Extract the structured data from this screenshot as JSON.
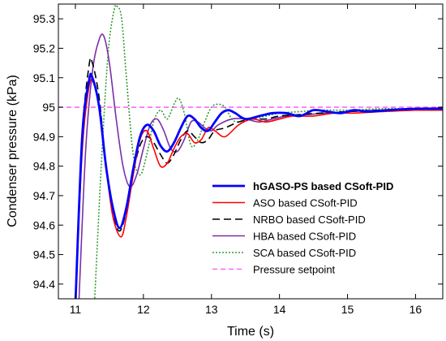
{
  "chart_data": {
    "type": "line",
    "xlabel": "Time (s)",
    "ylabel": "Condenser pressure (kPa)",
    "xlim": [
      10.75,
      16.4
    ],
    "ylim": [
      94.35,
      95.35
    ],
    "xticks": [
      "11",
      "12",
      "13",
      "14",
      "15",
      "16"
    ],
    "yticks": [
      "94.4",
      "94.5",
      "94.6",
      "94.7",
      "94.8",
      "94.9",
      "95",
      "95.1",
      "95.2",
      "95.3"
    ],
    "grid": false,
    "legend_position": "lower-right",
    "series": [
      {
        "name": "hGASO-PS based CSoft-PID",
        "color": "#0000ff",
        "style": "solid",
        "bold": true,
        "x": [
          11.0,
          11.1,
          11.2,
          11.25,
          11.35,
          11.45,
          11.55,
          11.65,
          11.75,
          11.85,
          11.95,
          12.05,
          12.15,
          12.25,
          12.35,
          12.45,
          12.55,
          12.65,
          12.75,
          12.85,
          12.95,
          13.05,
          13.15,
          13.25,
          13.35,
          13.5,
          13.7,
          13.9,
          14.1,
          14.3,
          14.5,
          14.7,
          14.9,
          15.1,
          15.3,
          15.6,
          16.0,
          16.4
        ],
        "y": [
          94.33,
          94.9,
          95.09,
          95.1,
          95.0,
          94.8,
          94.66,
          94.59,
          94.66,
          94.79,
          94.9,
          94.94,
          94.92,
          94.87,
          94.85,
          94.88,
          94.93,
          94.97,
          94.96,
          94.93,
          94.92,
          94.95,
          94.98,
          94.99,
          94.98,
          94.96,
          94.97,
          94.98,
          94.98,
          94.97,
          94.99,
          94.985,
          94.98,
          94.99,
          94.985,
          94.99,
          94.995,
          94.995
        ]
      },
      {
        "name": "ASO based CSoft-PID",
        "color": "#ff0000",
        "style": "solid",
        "bold": false,
        "x": [
          11.0,
          11.1,
          11.2,
          11.27,
          11.35,
          11.45,
          11.55,
          11.67,
          11.75,
          11.85,
          11.95,
          12.05,
          12.15,
          12.25,
          12.35,
          12.45,
          12.55,
          12.65,
          12.75,
          12.85,
          12.95,
          13.05,
          13.2,
          13.4,
          13.6,
          13.8,
          14.0,
          14.2,
          14.5,
          14.8,
          15.1,
          15.5,
          16.0,
          16.4
        ],
        "y": [
          94.33,
          94.85,
          95.07,
          95.08,
          95.0,
          94.8,
          94.63,
          94.56,
          94.63,
          94.77,
          94.89,
          94.92,
          94.86,
          94.8,
          94.81,
          94.86,
          94.9,
          94.91,
          94.88,
          94.89,
          94.93,
          94.92,
          94.9,
          94.94,
          94.96,
          94.95,
          94.96,
          94.97,
          94.97,
          94.98,
          94.98,
          94.985,
          94.99,
          94.99
        ]
      },
      {
        "name": "NRBO based CSoft-PID",
        "color": "#000000",
        "style": "dashed",
        "bold": false,
        "x": [
          11.0,
          11.1,
          11.2,
          11.25,
          11.35,
          11.45,
          11.55,
          11.65,
          11.75,
          11.85,
          11.95,
          12.05,
          12.15,
          12.25,
          12.35,
          12.45,
          12.55,
          12.65,
          12.75,
          12.85,
          12.95,
          13.05,
          13.2,
          13.4,
          13.6,
          13.8,
          14.0,
          14.3,
          14.6,
          15.0,
          15.5,
          16.0,
          16.4
        ],
        "y": [
          94.33,
          94.9,
          95.14,
          95.15,
          95.03,
          94.8,
          94.64,
          94.58,
          94.65,
          94.78,
          94.87,
          94.9,
          94.88,
          94.84,
          94.81,
          94.84,
          94.89,
          94.92,
          94.9,
          94.88,
          94.89,
          94.92,
          94.93,
          94.95,
          94.96,
          94.96,
          94.97,
          94.975,
          94.98,
          94.985,
          94.99,
          94.99,
          94.99
        ]
      },
      {
        "name": "HBA based CSoft-PID",
        "color": "#7b2fa8",
        "style": "solid",
        "bold": false,
        "x": [
          11.05,
          11.15,
          11.25,
          11.35,
          11.42,
          11.5,
          11.6,
          11.7,
          11.8,
          11.9,
          12.0,
          12.1,
          12.2,
          12.3,
          12.4,
          12.5,
          12.6,
          12.7,
          12.8,
          12.9,
          13.0,
          13.1,
          13.3,
          13.5,
          13.7,
          13.9,
          14.1,
          14.4,
          14.7,
          15.0,
          15.5,
          16.0,
          16.4
        ],
        "y": [
          94.33,
          94.85,
          95.12,
          95.23,
          95.24,
          95.15,
          94.96,
          94.8,
          94.73,
          94.77,
          94.86,
          94.94,
          94.96,
          94.92,
          94.86,
          94.85,
          94.89,
          94.95,
          94.95,
          94.93,
          94.92,
          94.94,
          94.96,
          94.96,
          94.95,
          94.96,
          94.97,
          94.975,
          94.98,
          94.985,
          94.99,
          94.99,
          94.99
        ]
      },
      {
        "name": "SCA based CSoft-PID",
        "color": "#339933",
        "style": "dotted",
        "bold": false,
        "x": [
          11.28,
          11.38,
          11.48,
          11.57,
          11.62,
          11.68,
          11.75,
          11.85,
          11.95,
          12.05,
          12.15,
          12.25,
          12.35,
          12.45,
          12.52,
          12.6,
          12.7,
          12.8,
          12.9,
          13.0,
          13.1,
          13.2,
          13.3,
          13.4,
          13.6,
          13.8,
          14.0,
          14.3,
          14.6,
          15.0,
          15.5,
          16.0,
          16.4
        ],
        "y": [
          94.33,
          94.8,
          95.18,
          95.33,
          95.34,
          95.3,
          95.1,
          94.84,
          94.77,
          94.84,
          94.95,
          94.99,
          94.96,
          95.01,
          95.03,
          94.98,
          94.87,
          94.89,
          94.95,
          95.0,
          95.01,
          95.0,
          94.96,
          94.95,
          94.96,
          94.97,
          94.98,
          94.985,
          94.99,
          94.99,
          94.995,
          94.995,
          94.995
        ]
      },
      {
        "name": "Pressure setpoint",
        "color": "#ff66ff",
        "style": "dashed",
        "bold": false,
        "x": [
          10.75,
          16.4
        ],
        "y": [
          95.0,
          95.0
        ]
      }
    ]
  }
}
